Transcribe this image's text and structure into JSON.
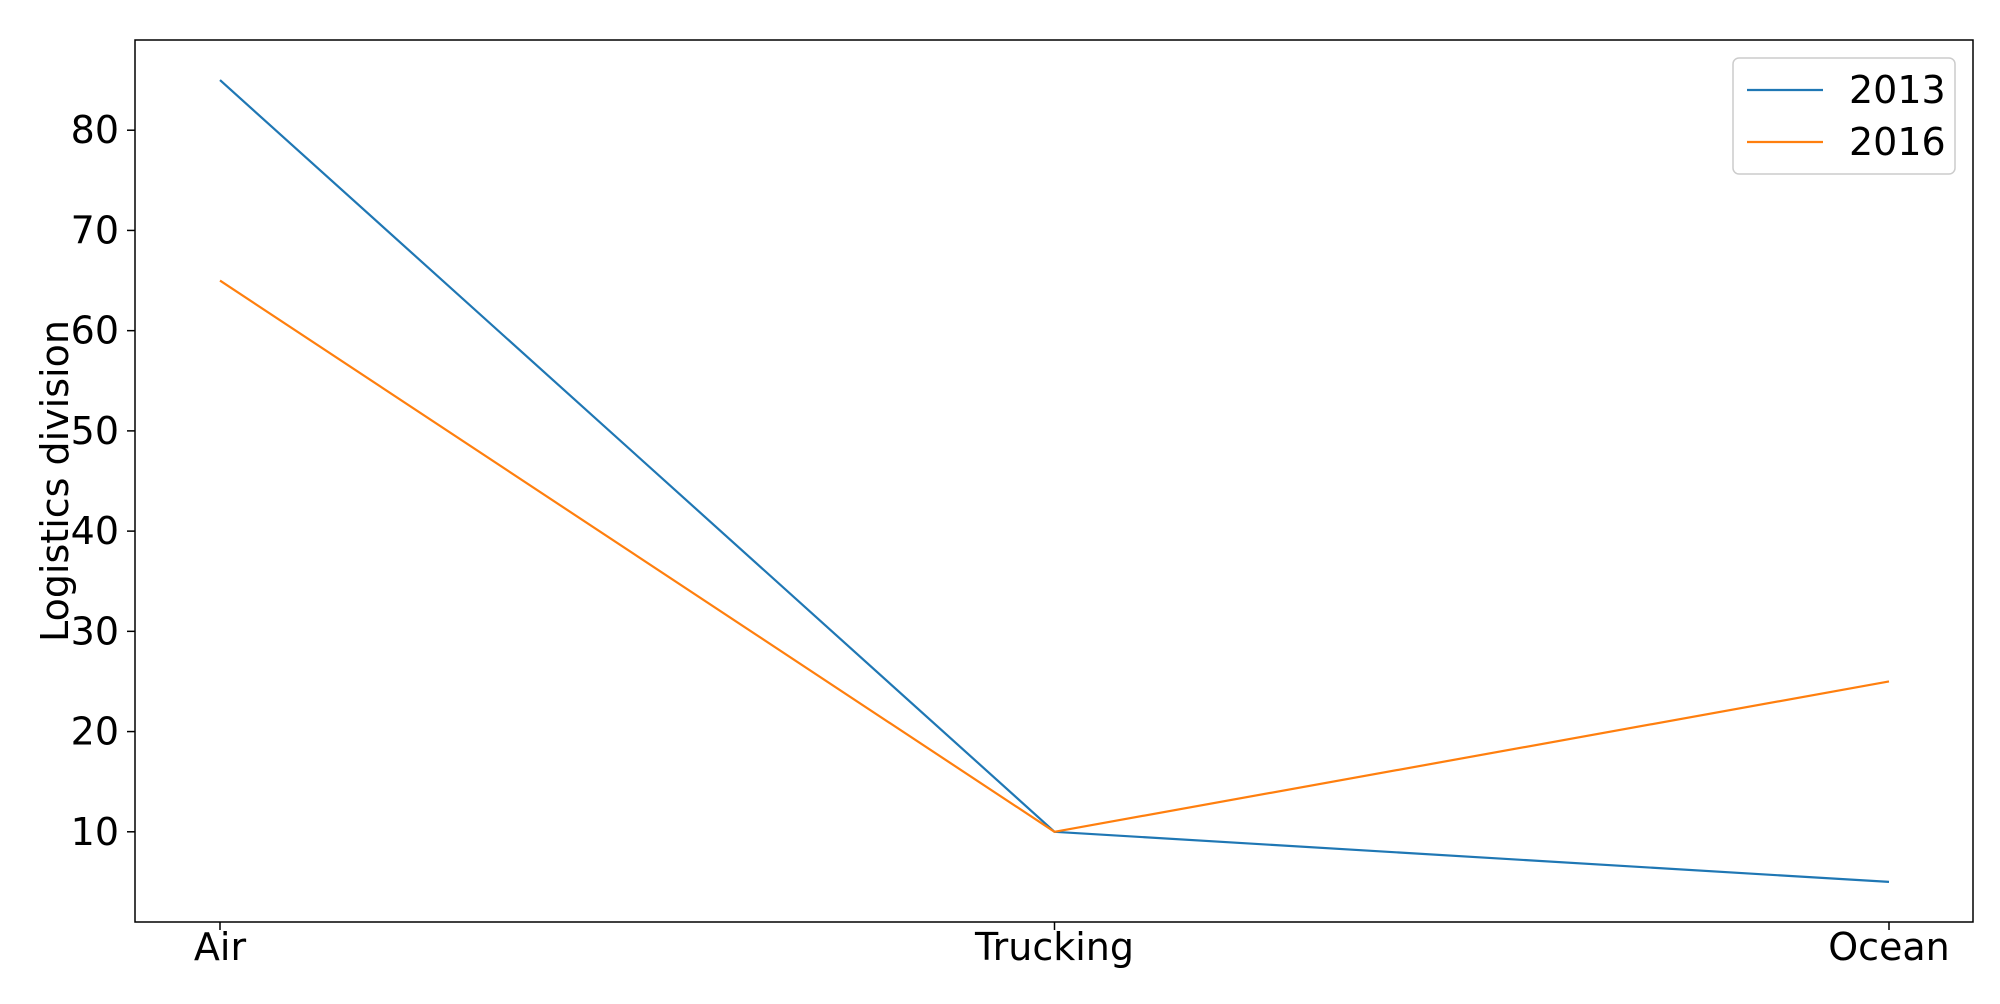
{
  "chart_data": {
    "type": "line",
    "categories": [
      "Air",
      "Trucking",
      "Ocean"
    ],
    "series": [
      {
        "name": "2013",
        "values": [
          85,
          10,
          5
        ],
        "color": "#1f77b4"
      },
      {
        "name": "2016",
        "values": [
          65,
          10,
          25
        ],
        "color": "#ff7f0e"
      }
    ],
    "xlabel": "",
    "ylabel": "Logistics division",
    "ylim": [
      1,
      89
    ],
    "yticks": [
      10,
      20,
      30,
      40,
      50,
      60,
      70,
      80
    ],
    "grid": false,
    "legend_position": "top-right"
  }
}
